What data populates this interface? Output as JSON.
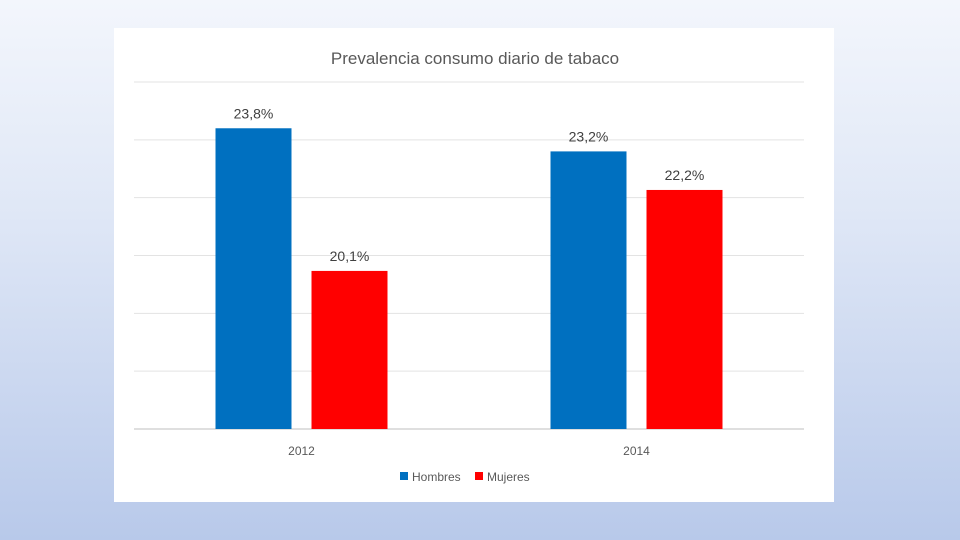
{
  "chart_data": {
    "type": "bar",
    "title": "Prevalencia consumo diario de tabaco",
    "categories": [
      "2012",
      "2014"
    ],
    "series": [
      {
        "name": "Hombres",
        "values": [
          23.8,
          23.2
        ],
        "labels": [
          "23,8%",
          "23,2%"
        ],
        "color": "#0070c0"
      },
      {
        "name": "Mujeres",
        "values": [
          20.1,
          22.2
        ],
        "labels": [
          "20,1%",
          "22,2%"
        ],
        "color": "#ff0000"
      }
    ],
    "ylim": [
      16,
      25
    ],
    "grid": true,
    "legend_position": "bottom"
  }
}
